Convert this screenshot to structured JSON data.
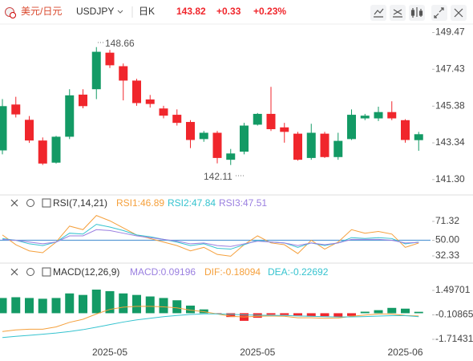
{
  "header": {
    "name": "美元/日元",
    "symbol": "USDJPY",
    "period": "日K",
    "price": "143.82",
    "change": "+0.33",
    "change_pct": "+0.23%"
  },
  "annotations": [
    "148.66",
    "142.11"
  ],
  "chart_data": [
    {
      "type": "candlestick",
      "up_color": "#139a65",
      "down_color": "#f0262c",
      "open": [
        142.92,
        145.47,
        144.62,
        143.47,
        142.24,
        143.68,
        146.02,
        146.32,
        148.35,
        147.6,
        146.8,
        145.75,
        145.25,
        144.9,
        144.5,
        143.55,
        143.9,
        142.4,
        142.85,
        144.35,
        144.95,
        144.2,
        143.85,
        142.5,
        143.85,
        142.55,
        143.55,
        144.7,
        144.7,
        145.05,
        144.6,
        143.49
      ],
      "high": [
        145.77,
        145.9,
        144.83,
        143.64,
        143.73,
        146.32,
        146.32,
        148.66,
        148.5,
        147.75,
        146.9,
        146.0,
        145.4,
        145.2,
        144.6,
        144.0,
        144.0,
        143.0,
        144.45,
        145.0,
        146.45,
        144.45,
        143.95,
        144.4,
        143.95,
        143.9,
        145.2,
        144.95,
        145.35,
        145.65,
        144.65,
        143.95
      ],
      "low": [
        142.7,
        144.75,
        143.34,
        142.11,
        142.19,
        143.55,
        145.26,
        145.77,
        147.5,
        145.7,
        145.4,
        145.3,
        144.7,
        144.3,
        143.05,
        143.4,
        142.2,
        142.11,
        142.7,
        144.3,
        144.0,
        143.35,
        142.35,
        142.4,
        142.5,
        142.4,
        143.5,
        144.6,
        144.55,
        144.6,
        143.35,
        142.9
      ],
      "close": [
        145.38,
        144.92,
        143.47,
        142.19,
        143.68,
        145.98,
        145.38,
        148.4,
        147.65,
        146.8,
        145.55,
        145.5,
        144.85,
        144.45,
        143.5,
        143.9,
        142.5,
        142.75,
        144.3,
        144.95,
        144.1,
        143.95,
        142.4,
        143.9,
        142.55,
        143.45,
        144.9,
        144.85,
        145.05,
        144.7,
        143.5,
        143.82
      ],
      "ylim": [
        140.49,
        149.94
      ],
      "yticks": [
        149.47,
        147.43,
        145.38,
        143.34,
        {
          "value": 141.3,
          "label": "141.30"
        }
      ]
    },
    {
      "type": "line",
      "title": "RSI(7,14,21)",
      "series": [
        {
          "name": "RSI1:46.89",
          "color": "#f5a03c",
          "values": [
            56,
            45,
            38,
            36,
            48,
            66,
            62,
            78,
            72,
            64,
            56,
            52,
            48,
            44,
            38,
            42,
            34,
            32,
            45,
            55,
            47,
            45,
            35,
            50,
            40,
            48,
            62,
            58,
            60,
            57,
            42,
            46.89
          ]
        },
        {
          "name": "RSI2:47.84",
          "color": "#35c3cf",
          "values": [
            52,
            50,
            46,
            44,
            48,
            58,
            57,
            68,
            65,
            61,
            56,
            54,
            51,
            48,
            44,
            46,
            41,
            40,
            45,
            50,
            48,
            47,
            42,
            47,
            44,
            47,
            53,
            52,
            53,
            52,
            46,
            47.84
          ]
        },
        {
          "name": "RSI3:47.51",
          "color": "#9a7fe0",
          "values": [
            51,
            50,
            48,
            46,
            48,
            55,
            55,
            62,
            61,
            58,
            55,
            53,
            51,
            49,
            46,
            47,
            44,
            43,
            46,
            49,
            48,
            47,
            44,
            47,
            45,
            47,
            51,
            51,
            51,
            50,
            47,
            47.51
          ]
        }
      ],
      "reference_lines": [
        {
          "value": 50,
          "color": "#5b9bd5"
        }
      ],
      "ylim": [
        26,
        84
      ],
      "yticks": [
        71.32,
        {
          "value": 50,
          "label": "50.00"
        },
        32.33
      ]
    },
    {
      "type": "combo",
      "title": "MACD(12,26,9)",
      "categories": [
        null,
        null,
        null,
        null,
        null,
        null,
        null,
        null,
        "2025-05",
        null,
        null,
        null,
        null,
        null,
        null,
        null,
        null,
        null,
        null,
        "2025-05",
        null,
        null,
        null,
        null,
        null,
        null,
        null,
        null,
        null,
        null,
        "2025-06",
        null
      ],
      "series": [
        {
          "name": "MACD:0.09196",
          "kind": "bar",
          "color": "#139a65",
          "negative_color": "#f0262c",
          "label_color": "#9a7fe0",
          "values": [
            1.0,
            1.05,
            1.0,
            0.95,
            1.0,
            1.3,
            1.2,
            1.55,
            1.45,
            1.3,
            1.2,
            1.1,
            1.0,
            0.85,
            0.5,
            0.25,
            -0.05,
            -0.25,
            -0.5,
            -0.3,
            -0.1,
            -0.12,
            -0.15,
            -0.22,
            -0.2,
            -0.25,
            -0.18,
            0.1,
            0.2,
            0.35,
            0.3,
            0.09196
          ]
        },
        {
          "name": "DIF:-0.18094",
          "kind": "line",
          "color": "#f5a03c",
          "values": [
            -1.2,
            -1.1,
            -1.05,
            -1.05,
            -0.9,
            -0.6,
            -0.4,
            -0.05,
            0.25,
            0.4,
            0.45,
            0.45,
            0.42,
            0.35,
            0.2,
            0.1,
            -0.05,
            -0.2,
            -0.25,
            -0.2,
            -0.18,
            -0.2,
            -0.3,
            -0.3,
            -0.33,
            -0.32,
            -0.2,
            -0.12,
            -0.05,
            -0.05,
            -0.15,
            -0.18094
          ]
        },
        {
          "name": "DEA:-0.22692",
          "kind": "line",
          "color": "#35c3cf",
          "values": [
            -1.6,
            -1.52,
            -1.45,
            -1.38,
            -1.3,
            -1.2,
            -1.08,
            -0.92,
            -0.75,
            -0.58,
            -0.44,
            -0.33,
            -0.23,
            -0.15,
            -0.08,
            -0.04,
            -0.04,
            -0.07,
            -0.11,
            -0.13,
            -0.14,
            -0.15,
            -0.18,
            -0.2,
            -0.23,
            -0.25,
            -0.24,
            -0.22,
            -0.19,
            -0.16,
            -0.16,
            -0.22692
          ]
        }
      ],
      "ylim": [
        -2.19,
        2.13
      ],
      "yticks": [
        1.49701,
        -0.10865,
        -1.71431
      ]
    }
  ]
}
